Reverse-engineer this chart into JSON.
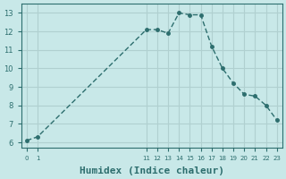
{
  "x": [
    0,
    1,
    11,
    12,
    13,
    14,
    15,
    16,
    17,
    18,
    19,
    20,
    21,
    22,
    23
  ],
  "y": [
    6.1,
    6.3,
    12.1,
    12.1,
    11.9,
    13.0,
    12.9,
    12.9,
    11.2,
    10.0,
    9.2,
    8.6,
    8.5,
    8.0,
    7.2
  ],
  "line_color": "#2d6e6e",
  "marker_color": "#2d6e6e",
  "bg_color": "#c8e8e8",
  "grid_color": "#b0d0d0",
  "xlabel": "Humidex (Indice chaleur)",
  "xlabel_fontsize": 8,
  "ylabel_ticks": [
    6,
    7,
    8,
    9,
    10,
    11,
    12,
    13
  ],
  "xtick_labels": [
    "0",
    "1",
    "11",
    "12",
    "13",
    "14",
    "15",
    "16",
    "17",
    "18",
    "19",
    "20",
    "21",
    "22",
    "23"
  ],
  "xtick_positions": [
    0,
    1,
    11,
    12,
    13,
    14,
    15,
    16,
    17,
    18,
    19,
    20,
    21,
    22,
    23
  ],
  "xlim": [
    -0.5,
    23.5
  ],
  "ylim": [
    5.7,
    13.5
  ]
}
